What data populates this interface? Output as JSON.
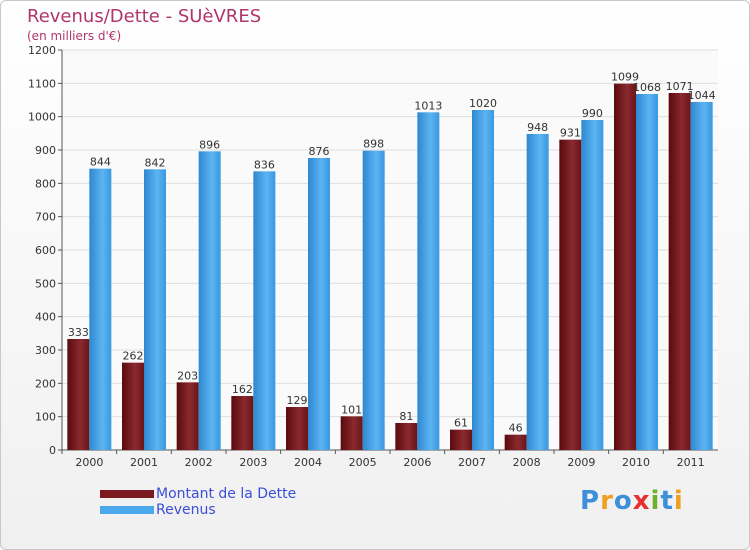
{
  "chart_data": {
    "type": "bar",
    "title": "Revenus/Dette - SUèVRES",
    "subtitle": "(en milliers d'€)",
    "categories": [
      "2000",
      "2001",
      "2002",
      "2003",
      "2004",
      "2005",
      "2006",
      "2007",
      "2008",
      "2009",
      "2010",
      "2011"
    ],
    "series": [
      {
        "name": "Montant de la Dette",
        "values": [
          333,
          262,
          203,
          162,
          129,
          101,
          81,
          61,
          46,
          931,
          1099,
          1071
        ],
        "color": "#7a1a1e"
      },
      {
        "name": "Revenus",
        "values": [
          844,
          842,
          896,
          836,
          876,
          898,
          1013,
          1020,
          948,
          990,
          1068,
          1044
        ],
        "color": "#4aa8ec"
      }
    ],
    "ylim": [
      0,
      1200
    ],
    "yticks": [
      0,
      100,
      200,
      300,
      400,
      500,
      600,
      700,
      800,
      900,
      1000,
      1100,
      1200
    ],
    "grid": true,
    "legend_position": "bottom-left"
  },
  "logo": {
    "text": "Proxiti",
    "letters": [
      "P",
      "r",
      "o",
      "x",
      "i",
      "t",
      "i"
    ],
    "colors": [
      "#3c8fd8",
      "#f0a020",
      "#3c8fd8",
      "#e83030",
      "#70b030",
      "#3c8fd8",
      "#f0a020"
    ]
  }
}
